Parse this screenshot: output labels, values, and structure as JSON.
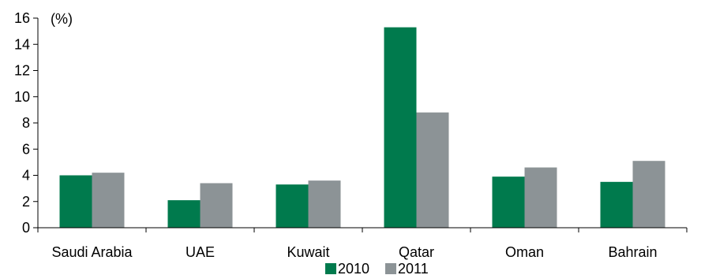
{
  "chart_data": {
    "type": "bar",
    "unit_label": "(%)",
    "categories": [
      "Saudi Arabia",
      "UAE",
      "Kuwait",
      "Qatar",
      "Oman",
      "Bahrain"
    ],
    "series": [
      {
        "name": "2010",
        "color": "#007a4d",
        "values": [
          4.0,
          2.1,
          3.3,
          15.3,
          3.9,
          3.5
        ]
      },
      {
        "name": "2011",
        "color": "#8c9396",
        "values": [
          4.2,
          3.4,
          3.6,
          8.8,
          4.6,
          5.1
        ]
      }
    ],
    "ylim": [
      0,
      16
    ],
    "yticks": [
      "0",
      "2",
      "4",
      "6",
      "8",
      "10",
      "12",
      "14",
      "16"
    ],
    "grid": false,
    "legend_position": "bottom-center"
  }
}
